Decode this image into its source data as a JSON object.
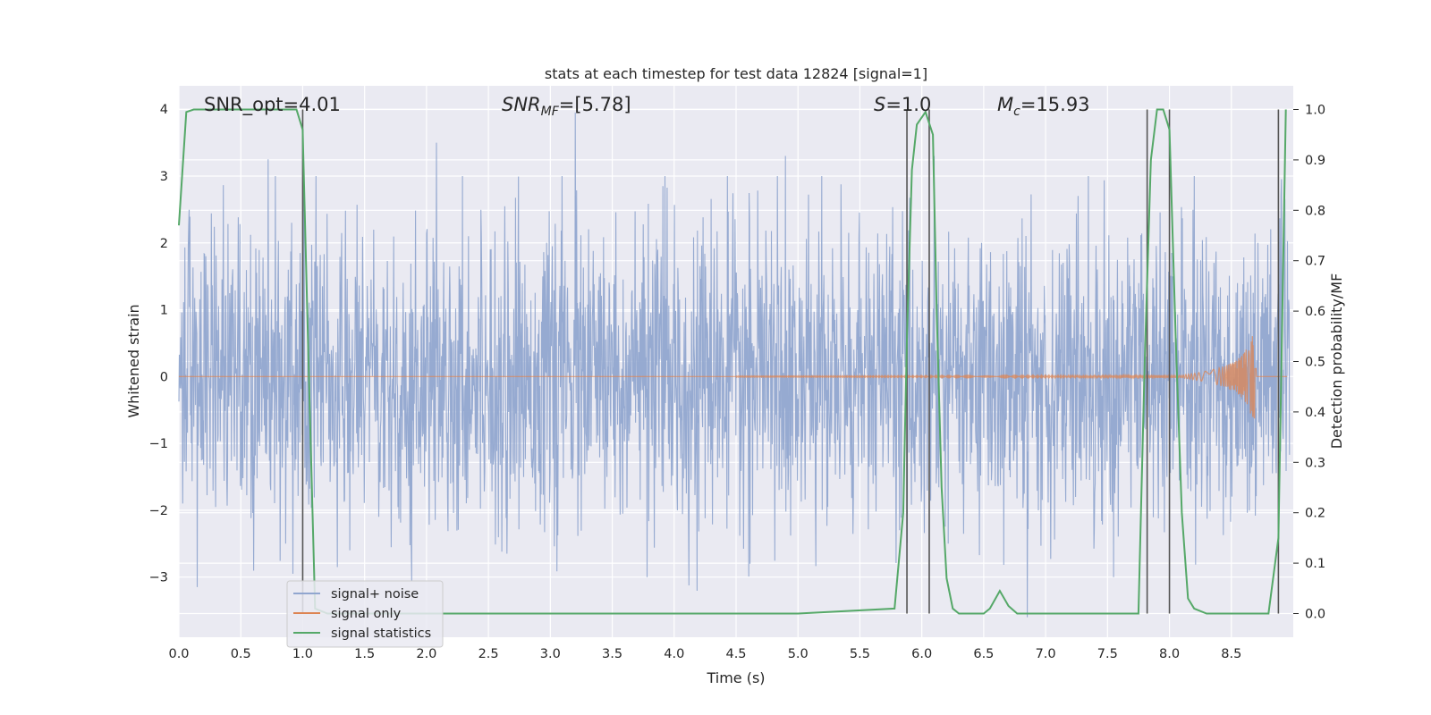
{
  "chart_data": {
    "type": "line",
    "title": "stats at each timestep for test data 12824 [signal=1]",
    "xlabel": "Time (s)",
    "ylabel": "Whitened strain",
    "y2label": "Detection probability/MF",
    "xlim": [
      0,
      9.0
    ],
    "ylim": [
      -3.9,
      4.35
    ],
    "y2lim": [
      -0.047,
      1.047
    ],
    "xticks": [
      0.0,
      0.5,
      1.0,
      1.5,
      2.0,
      2.5,
      3.0,
      3.5,
      4.0,
      4.5,
      5.0,
      5.5,
      6.0,
      6.5,
      7.0,
      7.5,
      8.0,
      8.5
    ],
    "xtick_labels": [
      "0.0",
      "0.5",
      "1.0",
      "1.5",
      "2.0",
      "2.5",
      "3.0",
      "3.5",
      "4.0",
      "4.5",
      "5.0",
      "5.5",
      "6.0",
      "6.5",
      "7.0",
      "7.5",
      "8.0",
      "8.5"
    ],
    "yticks": [
      -3,
      -2,
      -1,
      0,
      1,
      2,
      3,
      4
    ],
    "ytick_labels": [
      "−3",
      "−2",
      "−1",
      "0",
      "1",
      "2",
      "3",
      "4"
    ],
    "y2ticks": [
      0.0,
      0.1,
      0.2,
      0.3,
      0.4,
      0.5,
      0.6,
      0.7,
      0.8,
      0.9,
      1.0
    ],
    "y2tick_labels": [
      "0.0",
      "0.1",
      "0.2",
      "0.3",
      "0.4",
      "0.5",
      "0.6",
      "0.7",
      "0.8",
      "0.9",
      "1.0"
    ],
    "grid": true,
    "legend_position": "lower-left",
    "annotations": {
      "snr_opt": "SNR_opt=4.01",
      "snr_mf_main": "SNR",
      "snr_mf_sub": "MF",
      "snr_mf_rest": "=[5.78]",
      "s_main": "S",
      "s_rest": "=1.0",
      "mc_main": "M",
      "mc_sub": "c",
      "mc_rest": "=15.93"
    },
    "series": [
      {
        "name": "signal+ noise",
        "color": "#91a6cf",
        "noise_amplitude": 1.1,
        "note_style": "dense noise band",
        "peaks": [
          [
            0.15,
            -3.15
          ],
          [
            0.72,
            3.25
          ],
          [
            0.92,
            -2.95
          ],
          [
            1.28,
            -2.85
          ],
          [
            2.08,
            3.5
          ],
          [
            2.65,
            -2.65
          ],
          [
            3.2,
            3.95
          ],
          [
            3.78,
            -3.0
          ],
          [
            4.9,
            3.3
          ],
          [
            6.1,
            3.3
          ],
          [
            6.85,
            -3.6
          ],
          [
            7.55,
            -3.0
          ],
          [
            8.9,
            2.7
          ]
        ]
      },
      {
        "name": "signal only",
        "color": "#dd8452",
        "chirp_start": 4.5,
        "chirp_peak_time": 8.68,
        "chirp_peak_amplitude": 0.62
      },
      {
        "name": "signal statistics",
        "color": "#55a868",
        "axis": "secondary",
        "x": [
          0.0,
          0.06,
          0.12,
          0.2,
          0.3,
          0.5,
          0.7,
          0.85,
          0.95,
          1.0,
          1.05,
          1.1,
          1.2,
          1.5,
          2.0,
          3.0,
          4.0,
          5.0,
          5.78,
          5.85,
          5.88,
          5.92,
          5.96,
          6.03,
          6.09,
          6.12,
          6.16,
          6.2,
          6.25,
          6.3,
          6.4,
          6.5,
          6.55,
          6.63,
          6.7,
          6.77,
          6.85,
          7.0,
          7.5,
          7.75,
          7.8,
          7.85,
          7.9,
          7.95,
          8.0,
          8.05,
          8.1,
          8.15,
          8.2,
          8.3,
          8.5,
          8.8,
          8.88,
          8.94
        ],
        "y": [
          0.77,
          0.995,
          1.0,
          1.0,
          1.0,
          1.0,
          1.0,
          1.0,
          1.0,
          0.96,
          0.47,
          0.01,
          0.0,
          0.0,
          0.0,
          0.0,
          0.0,
          0.0,
          0.01,
          0.2,
          0.55,
          0.88,
          0.97,
          0.995,
          0.95,
          0.6,
          0.25,
          0.07,
          0.01,
          0.0,
          0.0,
          0.0,
          0.01,
          0.045,
          0.015,
          0.0,
          0.0,
          0.0,
          0.0,
          0.0,
          0.5,
          0.9,
          1.0,
          1.0,
          0.96,
          0.55,
          0.2,
          0.03,
          0.01,
          0.0,
          0.0,
          0.0,
          0.15,
          1.0
        ]
      }
    ],
    "vlines": [
      1.0,
      5.88,
      6.06,
      7.82,
      8.0,
      8.88
    ],
    "vline_color": "#555555"
  }
}
